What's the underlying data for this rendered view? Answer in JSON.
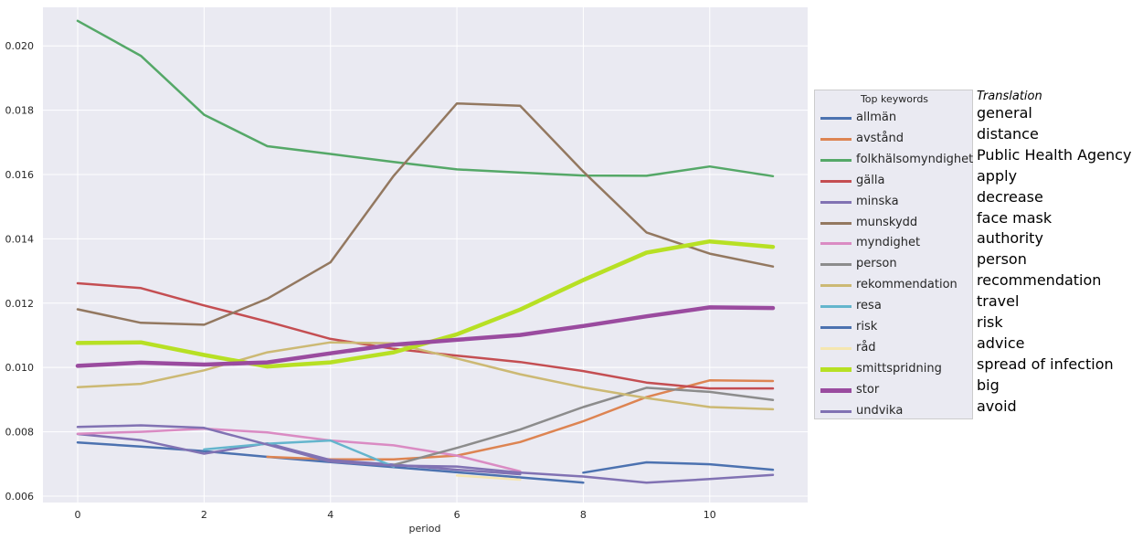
{
  "chart_data": {
    "type": "line",
    "xlabel": "period",
    "ylabel": "",
    "xlim": [
      -0.55,
      11.55
    ],
    "ylim": [
      0.0058,
      0.0212
    ],
    "xticks": [
      0,
      2,
      4,
      6,
      8,
      10
    ],
    "yticks": [
      0.006,
      0.008,
      0.01,
      0.012,
      0.014,
      0.016,
      0.018,
      0.02
    ],
    "xtick_labels": [
      "0",
      "2",
      "4",
      "6",
      "8",
      "10"
    ],
    "ytick_labels": [
      "0.006",
      "0.008",
      "0.010",
      "0.012",
      "0.014",
      "0.016",
      "0.018",
      "0.020"
    ],
    "grid": true,
    "legend_placement": "right, outside",
    "legend_title": "Top keywords",
    "series": [
      {
        "name": "allmän",
        "color": "#4c72b0",
        "width": 2.5,
        "points": [
          [
            0,
            0.00767
          ],
          [
            1,
            0.00754
          ],
          [
            2,
            0.0074
          ],
          [
            3,
            0.00722
          ],
          [
            4,
            0.00706
          ],
          [
            5,
            0.0069
          ],
          [
            6,
            0.00674
          ],
          [
            7,
            0.00658
          ],
          [
            8,
            0.00642
          ]
        ]
      },
      {
        "name": "avstånd",
        "color": "#dd8452",
        "width": 2.5,
        "points": [
          [
            3,
            0.00722
          ],
          [
            4,
            0.00714
          ],
          [
            5,
            0.00714
          ],
          [
            6,
            0.00726
          ],
          [
            7,
            0.00768
          ],
          [
            8,
            0.00833
          ],
          [
            9,
            0.00908
          ],
          [
            10,
            0.0096
          ],
          [
            11,
            0.00958
          ]
        ]
      },
      {
        "name": "folkhälsomyndighet",
        "color": "#55a868",
        "width": 2.5,
        "points": [
          [
            0,
            0.02078
          ],
          [
            1,
            0.01969
          ],
          [
            2,
            0.01786
          ],
          [
            3,
            0.01688
          ],
          [
            4,
            0.01664
          ],
          [
            5,
            0.01639
          ],
          [
            6,
            0.01616
          ],
          [
            7,
            0.01606
          ],
          [
            8,
            0.01597
          ],
          [
            9,
            0.01596
          ],
          [
            10,
            0.01625
          ],
          [
            11,
            0.01595
          ]
        ]
      },
      {
        "name": "gälla",
        "color": "#c44e52",
        "width": 2.5,
        "points": [
          [
            0,
            0.01262
          ],
          [
            1,
            0.01247
          ],
          [
            2,
            0.01193
          ],
          [
            3,
            0.01143
          ],
          [
            4,
            0.01089
          ],
          [
            5,
            0.01058
          ],
          [
            6,
            0.01037
          ],
          [
            7,
            0.01017
          ],
          [
            8,
            0.00989
          ],
          [
            9,
            0.00953
          ],
          [
            10,
            0.00935
          ],
          [
            11,
            0.00935
          ]
        ]
      },
      {
        "name": "minska",
        "color": "#8172b3",
        "width": 2.5,
        "points": [
          [
            0,
            0.00793
          ],
          [
            1,
            0.00774
          ],
          [
            2,
            0.00732
          ],
          [
            3,
            0.00764
          ],
          [
            4,
            0.00712
          ],
          [
            5,
            0.00698
          ],
          [
            6,
            0.00682
          ],
          [
            7,
            0.00668
          ]
        ]
      },
      {
        "name": "munskydd",
        "color": "#937860",
        "width": 2.5,
        "points": [
          [
            0,
            0.01181
          ],
          [
            1,
            0.01139
          ],
          [
            2,
            0.01133
          ],
          [
            3,
            0.01214
          ],
          [
            4,
            0.01327
          ],
          [
            5,
            0.01596
          ],
          [
            6,
            0.01821
          ],
          [
            7,
            0.01814
          ],
          [
            8,
            0.01609
          ],
          [
            9,
            0.0142
          ],
          [
            10,
            0.01354
          ],
          [
            11,
            0.01314
          ]
        ]
      },
      {
        "name": "myndighet",
        "color": "#da8bc3",
        "width": 2.5,
        "points": [
          [
            0,
            0.00794
          ],
          [
            1,
            0.008
          ],
          [
            2,
            0.0081
          ],
          [
            3,
            0.00798
          ],
          [
            4,
            0.00773
          ],
          [
            5,
            0.00758
          ],
          [
            6,
            0.00726
          ],
          [
            7,
            0.00677
          ]
        ]
      },
      {
        "name": "person",
        "color": "#8c8c8c",
        "width": 2.5,
        "points": [
          [
            5,
            0.00697
          ],
          [
            6,
            0.0075
          ],
          [
            7,
            0.00807
          ],
          [
            8,
            0.00877
          ],
          [
            9,
            0.00937
          ],
          [
            10,
            0.00924
          ],
          [
            11,
            0.00899
          ]
        ]
      },
      {
        "name": "rekommendation",
        "color": "#ccb974",
        "width": 2.5,
        "points": [
          [
            0,
            0.00939
          ],
          [
            1,
            0.00949
          ],
          [
            2,
            0.00991
          ],
          [
            3,
            0.01047
          ],
          [
            4,
            0.01078
          ],
          [
            5,
            0.01075
          ],
          [
            6,
            0.01028
          ],
          [
            7,
            0.00979
          ],
          [
            8,
            0.00938
          ],
          [
            9,
            0.00905
          ],
          [
            10,
            0.00877
          ],
          [
            11,
            0.0087
          ]
        ]
      },
      {
        "name": "resa",
        "color": "#64b5cd",
        "width": 2.5,
        "points": [
          [
            2,
            0.00745
          ],
          [
            3,
            0.00763
          ],
          [
            4,
            0.00773
          ],
          [
            5,
            0.00692
          ]
        ]
      },
      {
        "name": "risk",
        "color": "#4c72b0",
        "width": 2.5,
        "points": [
          [
            8,
            0.00673
          ],
          [
            9,
            0.00705
          ],
          [
            10,
            0.00699
          ],
          [
            11,
            0.00682
          ]
        ]
      },
      {
        "name": "råd",
        "color": "#f5e6b0",
        "width": 2.5,
        "points": [
          [
            6,
            0.00664
          ],
          [
            7,
            0.00651
          ]
        ]
      },
      {
        "name": "smittspridning",
        "color": "#b7e024",
        "width": 4.5,
        "points": [
          [
            0,
            0.01076
          ],
          [
            1,
            0.01078
          ],
          [
            2,
            0.01039
          ],
          [
            3,
            0.01003
          ],
          [
            4,
            0.01016
          ],
          [
            5,
            0.01047
          ],
          [
            6,
            0.01103
          ],
          [
            7,
            0.0118
          ],
          [
            8,
            0.01272
          ],
          [
            9,
            0.01357
          ],
          [
            10,
            0.01392
          ],
          [
            11,
            0.01375
          ]
        ]
      },
      {
        "name": "stor",
        "color": "#9a4b9f",
        "width": 4.5,
        "points": [
          [
            0,
            0.01005
          ],
          [
            1,
            0.01015
          ],
          [
            2,
            0.01009
          ],
          [
            3,
            0.01016
          ],
          [
            4,
            0.01044
          ],
          [
            5,
            0.01071
          ],
          [
            6,
            0.01086
          ],
          [
            7,
            0.01101
          ],
          [
            8,
            0.01129
          ],
          [
            9,
            0.01159
          ],
          [
            10,
            0.01187
          ],
          [
            11,
            0.01185
          ]
        ]
      },
      {
        "name": "undvika",
        "color": "#8172b3",
        "width": 2.5,
        "points": [
          [
            0,
            0.00815
          ],
          [
            1,
            0.0082
          ],
          [
            2,
            0.00812
          ],
          [
            3,
            0.0076
          ],
          [
            4,
            0.00707
          ],
          [
            5,
            0.00695
          ],
          [
            6,
            0.00692
          ],
          [
            7,
            0.00673
          ],
          [
            8,
            0.00661
          ],
          [
            9,
            0.00642
          ],
          [
            10,
            0.00653
          ],
          [
            11,
            0.00666
          ]
        ]
      }
    ],
    "translation_title": "Translation",
    "translations": [
      "general",
      "distance",
      "Public Health Agency",
      "apply",
      "decrease",
      "face mask",
      "authority",
      "person",
      "recommendation",
      "travel",
      "risk",
      "advice",
      "spread of infection",
      "big",
      "avoid"
    ]
  }
}
